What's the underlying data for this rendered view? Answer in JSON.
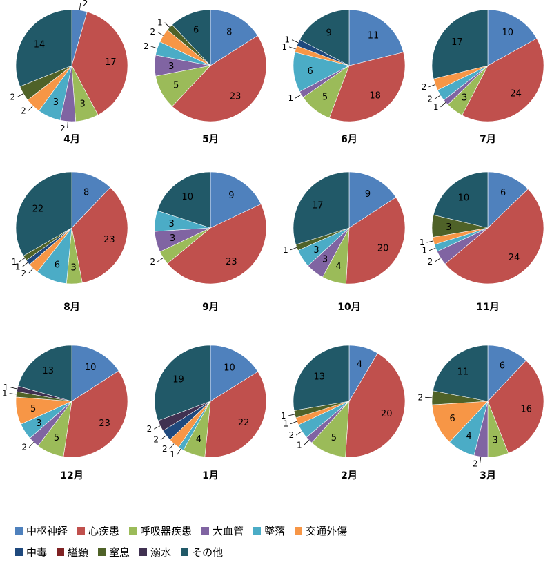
{
  "colors": {
    "中枢神経": "#4F81BD",
    "心疾患": "#C0504D",
    "呼吸器疾患": "#9BBB59",
    "大血管": "#8064A2",
    "墜落": "#4BACC6",
    "交通外傷": "#F79646",
    "中毒": "#1F497D",
    "縊頚": "#7F2223",
    "窒息": "#4F6228",
    "溺水": "#403151",
    "その他": "#215968"
  },
  "chart_data": {
    "type": "pie",
    "series_names": [
      "中枢神経",
      "心疾患",
      "呼吸器疾患",
      "大血管",
      "墜落",
      "交通外傷",
      "中毒",
      "縊頚",
      "窒息",
      "溺水",
      "その他"
    ],
    "legend_position": "bottom",
    "charts": [
      {
        "title": "4月",
        "values": [
          2,
          17,
          3,
          2,
          3,
          2,
          0,
          0,
          2,
          0,
          14
        ]
      },
      {
        "title": "5月",
        "values": [
          8,
          23,
          5,
          3,
          2,
          2,
          0,
          0,
          1,
          0,
          6
        ]
      },
      {
        "title": "6月",
        "values": [
          11,
          18,
          5,
          1,
          6,
          1,
          1,
          0,
          0,
          0,
          9
        ]
      },
      {
        "title": "7月",
        "values": [
          10,
          24,
          3,
          1,
          2,
          2,
          0,
          0,
          0,
          0,
          17
        ]
      },
      {
        "title": "8月",
        "values": [
          8,
          23,
          3,
          0,
          6,
          2,
          1,
          0,
          1,
          0,
          22
        ]
      },
      {
        "title": "9月",
        "values": [
          9,
          23,
          2,
          3,
          3,
          0,
          0,
          0,
          0,
          0,
          10
        ]
      },
      {
        "title": "10月",
        "values": [
          9,
          20,
          4,
          3,
          3,
          0,
          0,
          0,
          1,
          0,
          17
        ]
      },
      {
        "title": "11月",
        "values": [
          6,
          24,
          0,
          2,
          1,
          1,
          0,
          0,
          3,
          0,
          10
        ]
      },
      {
        "title": "12月",
        "values": [
          10,
          23,
          5,
          2,
          3,
          5,
          0,
          0,
          1,
          1,
          13
        ]
      },
      {
        "title": "1月",
        "values": [
          10,
          22,
          4,
          0,
          1,
          2,
          2,
          0,
          0,
          2,
          19
        ]
      },
      {
        "title": "2月",
        "values": [
          4,
          20,
          5,
          1,
          2,
          1,
          0,
          0,
          1,
          0,
          13
        ]
      },
      {
        "title": "3月",
        "values": [
          6,
          16,
          3,
          2,
          4,
          6,
          0,
          0,
          2,
          0,
          11
        ]
      }
    ]
  },
  "legend_rows": [
    [
      "中枢神経",
      "心疾患",
      "呼吸器疾患",
      "大血管",
      "墜落",
      "交通外傷"
    ],
    [
      "中毒",
      "縊頚",
      "窒息",
      "溺水",
      "その他"
    ]
  ]
}
